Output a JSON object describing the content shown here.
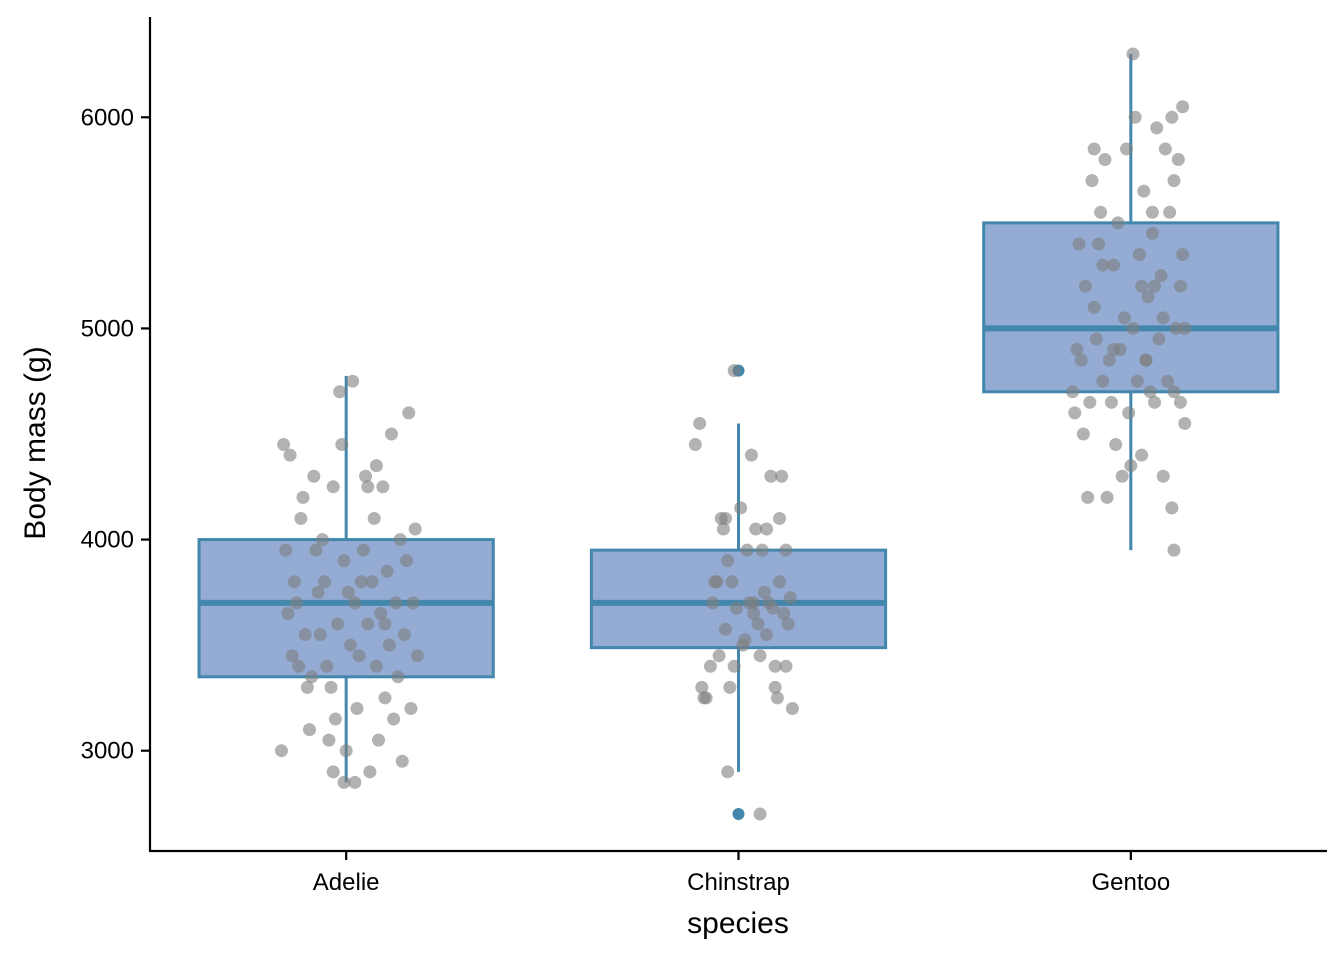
{
  "chart_data": {
    "type": "boxplot",
    "xlabel": "species",
    "ylabel": "Body mass (g)",
    "categories": [
      "Adelie",
      "Chinstrap",
      "Gentoo"
    ],
    "ylim": [
      2525,
      6475
    ],
    "yticks": [
      3000,
      4000,
      5000,
      6000
    ],
    "grid": false,
    "colors": {
      "box_fill": "#94abd3",
      "box_stroke": "#4387ad",
      "outlier": "#4387ad",
      "jitter": "#7f7f7f"
    },
    "boxes": [
      {
        "category": "Adelie",
        "q1": 3350,
        "median": 3700,
        "q3": 4000,
        "whisker_low": 2850,
        "whisker_high": 4775,
        "outliers": []
      },
      {
        "category": "Chinstrap",
        "q1": 3488,
        "median": 3700,
        "q3": 3950,
        "whisker_low": 2900,
        "whisker_high": 4550,
        "outliers": [
          2700,
          4800
        ]
      },
      {
        "category": "Gentoo",
        "q1": 4700,
        "median": 5000,
        "q3": 5500,
        "whisker_low": 3950,
        "whisker_high": 6300,
        "outliers": []
      }
    ],
    "points": {
      "Adelie": [
        [
          -0.3,
          3000
        ],
        [
          -0.26,
          4400
        ],
        [
          -0.25,
          3450
        ],
        [
          -0.22,
          3400
        ],
        [
          -0.2,
          4200
        ],
        [
          -0.18,
          3300
        ],
        [
          -0.15,
          4300
        ],
        [
          -0.12,
          3550
        ],
        [
          -0.1,
          3800
        ],
        [
          -0.08,
          3050
        ],
        [
          -0.06,
          4250
        ],
        [
          -0.05,
          3150
        ],
        [
          -0.04,
          3600
        ],
        [
          -0.03,
          4700
        ],
        [
          -0.01,
          3900
        ],
        [
          0.01,
          3750
        ],
        [
          0.02,
          3500
        ],
        [
          0.04,
          3700
        ],
        [
          0.05,
          3200
        ],
        [
          0.06,
          3450
        ],
        [
          0.08,
          3950
        ],
        [
          0.09,
          4300
        ],
        [
          0.1,
          3600
        ],
        [
          0.11,
          2900
        ],
        [
          0.12,
          3800
        ],
        [
          0.13,
          4100
        ],
        [
          0.14,
          3400
        ],
        [
          0.15,
          3050
        ],
        [
          0.16,
          3650
        ],
        [
          0.17,
          4250
        ],
        [
          0.18,
          3250
        ],
        [
          0.19,
          3850
        ],
        [
          0.2,
          3500
        ],
        [
          0.21,
          4500
        ],
        [
          0.22,
          3150
        ],
        [
          0.23,
          3700
        ],
        [
          0.24,
          3350
        ],
        [
          0.25,
          4000
        ],
        [
          0.26,
          2950
        ],
        [
          0.27,
          3550
        ],
        [
          0.28,
          3900
        ],
        [
          0.29,
          4600
        ],
        [
          0.3,
          3200
        ],
        [
          -0.29,
          4450
        ],
        [
          -0.27,
          3650
        ],
        [
          -0.24,
          3800
        ],
        [
          -0.21,
          4100
        ],
        [
          -0.19,
          3550
        ],
        [
          -0.17,
          3100
        ],
        [
          -0.14,
          3950
        ],
        [
          -0.11,
          4000
        ],
        [
          -0.09,
          3400
        ],
        [
          -0.07,
          3300
        ],
        [
          -0.02,
          4450
        ],
        [
          0.0,
          3000
        ],
        [
          0.03,
          4750
        ],
        [
          0.07,
          3800
        ],
        [
          -0.23,
          3700
        ],
        [
          -0.16,
          3350
        ],
        [
          -0.13,
          3750
        ],
        [
          0.32,
          4050
        ],
        [
          -0.28,
          3950
        ],
        [
          0.33,
          3450
        ],
        [
          0.31,
          3700
        ],
        [
          -0.06,
          2900
        ],
        [
          0.04,
          2850
        ],
        [
          -0.01,
          2850
        ],
        [
          0.14,
          4350
        ],
        [
          0.1,
          4250
        ],
        [
          0.18,
          3600
        ]
      ],
      "Chinstrap": [
        [
          -0.2,
          4450
        ],
        [
          -0.18,
          4550
        ],
        [
          -0.17,
          3300
        ],
        [
          -0.15,
          3250
        ],
        [
          -0.13,
          3400
        ],
        [
          -0.12,
          3700
        ],
        [
          -0.1,
          3800
        ],
        [
          -0.09,
          3450
        ],
        [
          -0.07,
          4050
        ],
        [
          -0.06,
          3575
        ],
        [
          -0.05,
          3900
        ],
        [
          -0.04,
          3300
        ],
        [
          -0.03,
          3800
        ],
        [
          -0.02,
          3400
        ],
        [
          -0.01,
          3675
        ],
        [
          0.01,
          4150
        ],
        [
          0.02,
          3500
        ],
        [
          0.04,
          3950
        ],
        [
          0.05,
          3700
        ],
        [
          0.06,
          4400
        ],
        [
          0.07,
          3650
        ],
        [
          0.08,
          4050
        ],
        [
          0.09,
          3600
        ],
        [
          0.1,
          3450
        ],
        [
          0.11,
          3950
        ],
        [
          0.12,
          3750
        ],
        [
          0.13,
          3550
        ],
        [
          0.14,
          3700
        ],
        [
          0.15,
          4300
        ],
        [
          0.16,
          3675
        ],
        [
          0.17,
          3400
        ],
        [
          0.18,
          3250
        ],
        [
          0.19,
          3800
        ],
        [
          0.2,
          4300
        ],
        [
          0.21,
          3650
        ],
        [
          0.22,
          3400
        ],
        [
          0.23,
          3600
        ],
        [
          0.24,
          3725
        ],
        [
          0.25,
          3200
        ],
        [
          -0.11,
          3800
        ],
        [
          -0.08,
          4100
        ],
        [
          0.03,
          3525
        ],
        [
          0.13,
          4050
        ],
        [
          0.17,
          3300
        ],
        [
          -0.05,
          2900
        ],
        [
          0.1,
          2700
        ],
        [
          -0.02,
          4800
        ],
        [
          0.19,
          4100
        ],
        [
          -0.16,
          3250
        ],
        [
          -0.06,
          4100
        ],
        [
          0.22,
          3950
        ],
        [
          0.07,
          3700
        ]
      ],
      "Gentoo": [
        [
          -0.26,
          4600
        ],
        [
          -0.24,
          5400
        ],
        [
          -0.22,
          4500
        ],
        [
          -0.2,
          4200
        ],
        [
          -0.18,
          5700
        ],
        [
          -0.17,
          5100
        ],
        [
          -0.16,
          4950
        ],
        [
          -0.14,
          5550
        ],
        [
          -0.13,
          4750
        ],
        [
          -0.12,
          5800
        ],
        [
          -0.1,
          4850
        ],
        [
          -0.09,
          4650
        ],
        [
          -0.08,
          5300
        ],
        [
          -0.07,
          4450
        ],
        [
          -0.06,
          5500
        ],
        [
          -0.05,
          4900
        ],
        [
          -0.04,
          4300
        ],
        [
          -0.03,
          5050
        ],
        [
          -0.02,
          5850
        ],
        [
          -0.01,
          4600
        ],
        [
          0.01,
          5000
        ],
        [
          0.02,
          6000
        ],
        [
          0.03,
          4750
        ],
        [
          0.04,
          5350
        ],
        [
          0.05,
          4400
        ],
        [
          0.06,
          5650
        ],
        [
          0.07,
          4850
        ],
        [
          0.08,
          5150
        ],
        [
          0.09,
          4700
        ],
        [
          0.1,
          5450
        ],
        [
          0.11,
          4650
        ],
        [
          0.12,
          5950
        ],
        [
          0.13,
          4950
        ],
        [
          0.14,
          5250
        ],
        [
          0.15,
          4300
        ],
        [
          0.16,
          5850
        ],
        [
          0.17,
          4750
        ],
        [
          0.18,
          5550
        ],
        [
          0.19,
          4150
        ],
        [
          0.2,
          5700
        ],
        [
          0.21,
          5000
        ],
        [
          0.22,
          5800
        ],
        [
          0.23,
          4650
        ],
        [
          0.24,
          5350
        ],
        [
          0.25,
          4550
        ],
        [
          -0.25,
          4900
        ],
        [
          -0.21,
          5200
        ],
        [
          -0.19,
          4650
        ],
        [
          -0.15,
          5400
        ],
        [
          -0.11,
          4200
        ],
        [
          0.0,
          4350
        ],
        [
          0.05,
          5200
        ],
        [
          0.1,
          5550
        ],
        [
          0.15,
          5050
        ],
        [
          0.19,
          6000
        ],
        [
          0.2,
          4700
        ],
        [
          0.23,
          5200
        ],
        [
          0.25,
          5000
        ],
        [
          -0.23,
          4850
        ],
        [
          -0.17,
          5850
        ],
        [
          0.01,
          6300
        ],
        [
          0.2,
          3950
        ],
        [
          0.24,
          6050
        ],
        [
          -0.27,
          4700
        ],
        [
          -0.08,
          4900
        ],
        [
          0.07,
          4850
        ],
        [
          0.11,
          5200
        ],
        [
          -0.13,
          5300
        ]
      ]
    }
  }
}
